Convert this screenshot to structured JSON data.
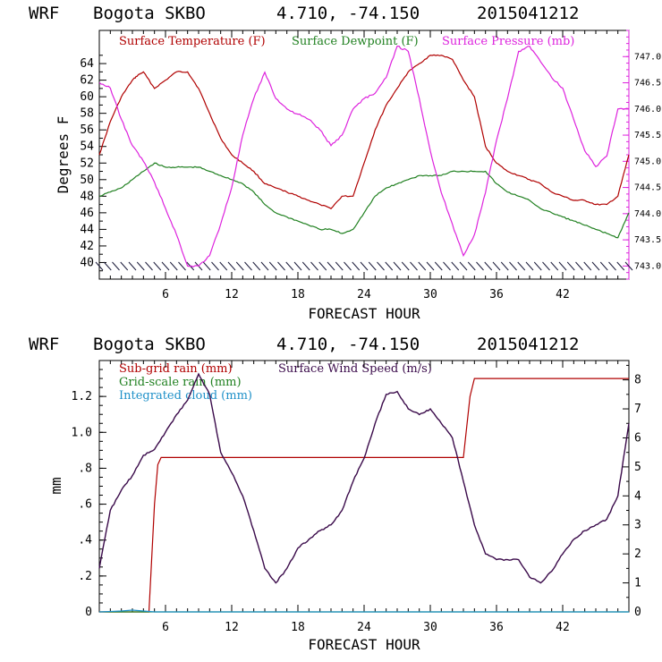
{
  "charts": [
    {
      "header": {
        "model": "WRF",
        "station": "Bogota SKBO",
        "coords": "4.710, -74.150",
        "run": "2015041212"
      },
      "xlabel": "FORECAST HOUR",
      "ylabel": "Degrees F",
      "legend": [
        "Surface Temperature (F)",
        "Surface Dewpoint (F)",
        "Surface Pressure (mb)"
      ]
    },
    {
      "header": {
        "model": "WRF",
        "station": "Bogota SKBO",
        "coords": "4.710, -74.150",
        "run": "2015041212"
      },
      "xlabel": "FORECAST HOUR",
      "ylabel": "mm",
      "legend": [
        "Sub-grid rain (mm)",
        "Grid-scale rain (mm)",
        "Integrated cloud (mm)",
        "Surface Wind Speed (m/s)"
      ]
    }
  ],
  "chart_data": [
    {
      "type": "line",
      "title": "WRF Bogota SKBO 4.710, -74.150 2015041212",
      "xlabel": "FORECAST HOUR",
      "ylabel": "Degrees F",
      "xlim": [
        0,
        48
      ],
      "ylim": [
        38,
        68
      ],
      "y2lim": [
        742.75,
        747.5
      ],
      "xticks": [
        6,
        12,
        18,
        24,
        30,
        36,
        42
      ],
      "yticks": [
        40,
        42,
        44,
        46,
        48,
        50,
        52,
        54,
        56,
        58,
        60,
        62,
        64
      ],
      "y2ticks": [
        "743.0",
        "743.5",
        "744.0",
        "744.5",
        "745.0",
        "745.5",
        "746.0",
        "746.5",
        "747.0"
      ],
      "colors": {
        "temp": "#b00000",
        "dew": "#208020",
        "press": "#dd22dd"
      },
      "series": [
        {
          "name": "Surface Temperature (F)",
          "axis": "left",
          "x": [
            0,
            1,
            2,
            3,
            3.5,
            4,
            5,
            6,
            7,
            8,
            9,
            10,
            11,
            12,
            13,
            14,
            15,
            16,
            17,
            18,
            19,
            20,
            21,
            22,
            23,
            24,
            25,
            26,
            27,
            28,
            29,
            30,
            31,
            32,
            33,
            34,
            35,
            36,
            37,
            38,
            39,
            40,
            41,
            42,
            43,
            44,
            45,
            46,
            47,
            48
          ],
          "values": [
            53,
            57,
            60,
            62,
            62.6,
            63,
            61,
            62,
            63,
            63,
            61,
            58,
            55,
            53,
            52,
            51,
            49.5,
            49,
            48.5,
            48,
            47.5,
            47,
            46.5,
            48,
            48,
            52,
            56,
            59,
            61,
            63,
            64,
            65,
            65,
            64.5,
            62,
            60,
            54,
            52,
            51,
            50.5,
            50,
            49.5,
            48.5,
            48,
            47.5,
            47.5,
            47,
            47,
            48,
            53
          ]
        },
        {
          "name": "Surface Dewpoint (F)",
          "axis": "left",
          "x": [
            0,
            1,
            2,
            3,
            4,
            5,
            6,
            7,
            8,
            9,
            10,
            11,
            12,
            13,
            14,
            15,
            16,
            17,
            18,
            19,
            20,
            21,
            22,
            23,
            24,
            25,
            26,
            27,
            28,
            29,
            30,
            31,
            32,
            33,
            34,
            35,
            36,
            37,
            38,
            39,
            40,
            41,
            42,
            43,
            44,
            45,
            46,
            47,
            48
          ],
          "values": [
            48,
            48.5,
            49,
            50,
            51,
            52,
            51.5,
            51.5,
            51.5,
            51.5,
            51,
            50.5,
            50,
            49.5,
            48.5,
            47,
            46,
            45.5,
            45,
            44.5,
            44,
            44,
            43.5,
            44,
            46,
            48,
            49,
            49.5,
            50,
            50.5,
            50.5,
            50.5,
            51,
            51,
            51,
            51,
            49.5,
            48.5,
            48,
            47.5,
            46.5,
            46,
            45.5,
            45,
            44.5,
            44,
            43.5,
            43,
            46
          ]
        },
        {
          "name": "Surface Pressure (mb)",
          "axis": "right",
          "x": [
            0,
            1,
            2,
            3,
            4,
            5,
            6,
            7,
            8,
            9,
            10,
            11,
            12,
            13,
            14,
            15,
            16,
            17,
            18,
            19,
            20,
            21,
            22,
            23,
            24,
            25,
            26,
            27,
            28,
            29,
            30,
            31,
            32,
            33,
            34,
            35,
            36,
            37,
            38,
            39,
            40,
            41,
            42,
            43,
            44,
            45,
            46,
            47,
            48
          ],
          "values": [
            746.5,
            746.4,
            745.8,
            745.3,
            745,
            744.6,
            744.1,
            743.6,
            743,
            743,
            743.2,
            743.8,
            744.5,
            745.5,
            746.2,
            746.7,
            746.2,
            746,
            745.9,
            745.8,
            745.6,
            745.3,
            745.5,
            746,
            746.2,
            746.3,
            746.6,
            747.2,
            747.1,
            746.2,
            745.2,
            744.4,
            743.8,
            743.2,
            743.6,
            744.4,
            745.4,
            746.2,
            747.1,
            747.2,
            746.9,
            746.6,
            746.4,
            745.8,
            745.2,
            744.9,
            745.1,
            746,
            746
          ]
        }
      ]
    },
    {
      "type": "line",
      "title": "WRF Bogota SKBO 4.710, -74.150 2015041212",
      "xlabel": "FORECAST HOUR",
      "ylabel": "mm",
      "xlim": [
        0,
        48
      ],
      "ylim": [
        0,
        1.4
      ],
      "y2lim": [
        0,
        8.667
      ],
      "xticks": [
        6,
        12,
        18,
        24,
        30,
        36,
        42
      ],
      "yticks": [
        "0",
        ".2",
        ".4",
        ".6",
        ".8",
        "1.0",
        "1.2"
      ],
      "ytick_values": [
        0,
        0.2,
        0.4,
        0.6,
        0.8,
        1.0,
        1.2
      ],
      "y2ticks": [
        0,
        1,
        2,
        3,
        4,
        5,
        6,
        7,
        8
      ],
      "colors": {
        "subgrid": "#b00000",
        "grid": "#208020",
        "cloud": "#1e90c8",
        "wind": "#3a0a4a"
      },
      "series": [
        {
          "name": "Sub-grid rain (mm)",
          "axis": "left",
          "x": [
            0,
            4.5,
            5,
            5.3,
            5.6,
            33,
            33.6,
            34,
            48
          ],
          "values": [
            0,
            0,
            0.6,
            0.82,
            0.86,
            0.86,
            1.2,
            1.3,
            1.3
          ]
        },
        {
          "name": "Grid-scale rain (mm)",
          "axis": "left",
          "x": [
            0,
            48
          ],
          "values": [
            0,
            0
          ]
        },
        {
          "name": "Integrated cloud (mm)",
          "axis": "left",
          "x": [
            0,
            2,
            3,
            4,
            5,
            48
          ],
          "values": [
            0,
            0.005,
            0.01,
            0.005,
            0,
            0
          ]
        },
        {
          "name": "Surface Wind Speed (m/s)",
          "axis": "right",
          "x": [
            0,
            1,
            2,
            3,
            4,
            5,
            6,
            7,
            8,
            9,
            10,
            11,
            12,
            13,
            14,
            15,
            16,
            17,
            18,
            19,
            20,
            21,
            22,
            23,
            24,
            25,
            26,
            27,
            28,
            29,
            30,
            31,
            32,
            33,
            34,
            35,
            36,
            37,
            38,
            39,
            40,
            41,
            42,
            43,
            44,
            45,
            46,
            47,
            48
          ],
          "values": [
            1.5,
            3.5,
            4.2,
            4.7,
            5.4,
            5.6,
            6.2,
            6.8,
            7.3,
            8.2,
            7.5,
            5.5,
            4.8,
            4.0,
            2.8,
            1.5,
            1.0,
            1.5,
            2.2,
            2.5,
            2.8,
            3.0,
            3.5,
            4.5,
            5.3,
            6.5,
            7.5,
            7.6,
            7.0,
            6.8,
            7.0,
            6.5,
            6.0,
            4.5,
            3.0,
            2.0,
            1.8,
            1.8,
            1.8,
            1.2,
            1.0,
            1.4,
            2.0,
            2.5,
            2.8,
            3.0,
            3.2,
            4.0,
            6.5
          ]
        }
      ]
    }
  ]
}
